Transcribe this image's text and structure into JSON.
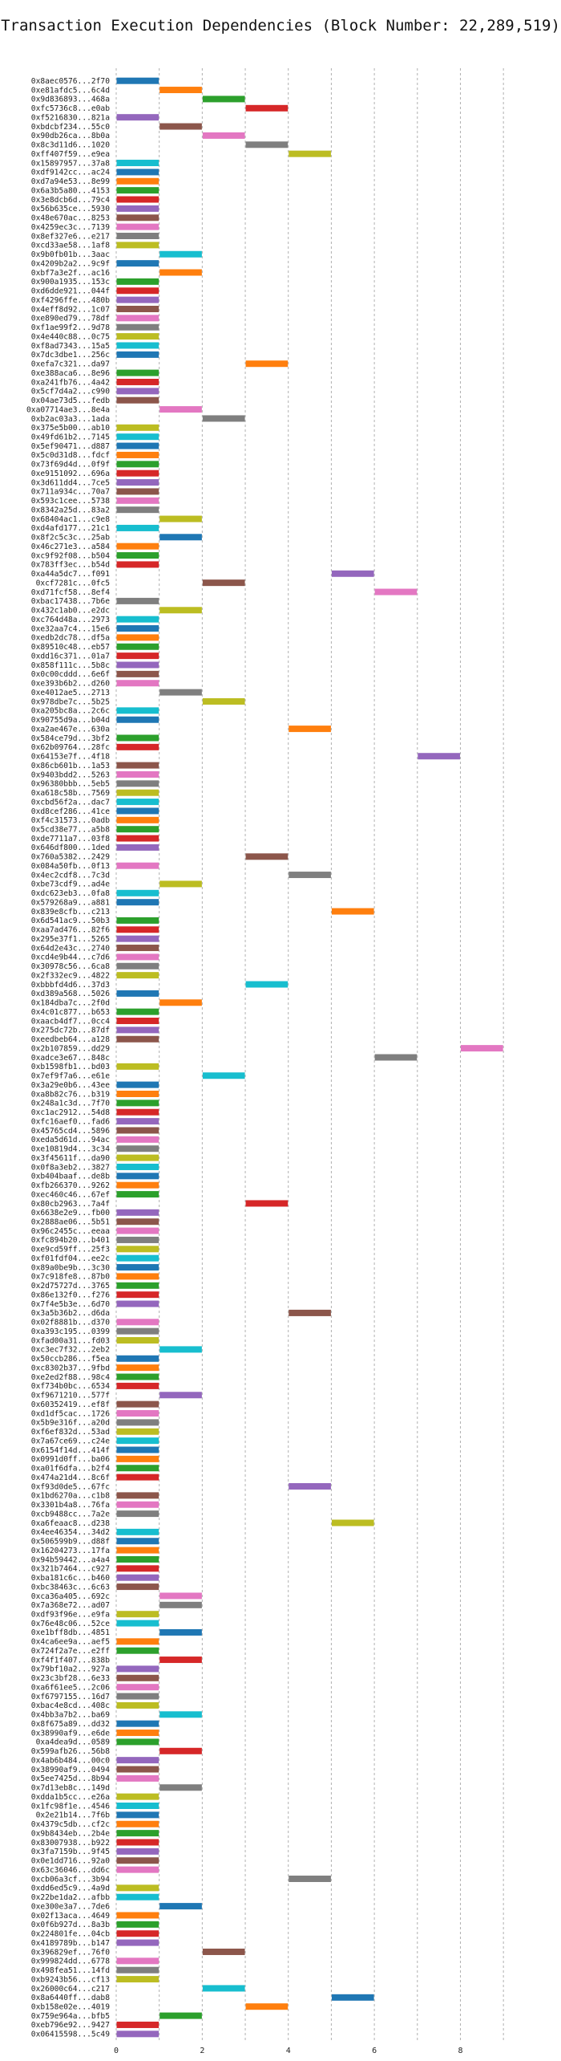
{
  "chart_data": {
    "type": "gantt",
    "title": "Transaction Execution Dependencies (Block Number: 22,289,519)",
    "xlabel": "",
    "ylabel": "",
    "xlim": [
      0,
      9.5
    ],
    "xticks": [
      0,
      2,
      4,
      6,
      8
    ],
    "grid": "vertical dashed at every 1 unit",
    "colors": [
      "#1f77b4",
      "#ff7f0e",
      "#2ca02c",
      "#d62728",
      "#9467bd",
      "#8c564b",
      "#e377c2",
      "#7f7f7f",
      "#bcbd22",
      "#17becf"
    ],
    "transactions": [
      "0x8aec0576...2f70",
      "0xe81afdc5...6c4d",
      "0x9d836893...468a",
      "0xfc5736c8...e0ab",
      "0xf5216830...821a",
      "0xbdcbf234...55c0",
      "0x90db26ca...8b0a",
      "0x8c3d11d6...1020",
      "0xff407f59...e9ea",
      "0x15897957...37a8",
      "0xdf9142cc...ac24",
      "0xd7a94e53...8e99",
      "0x6a3b5a80...4153",
      "0x3e8dcb6d...79c4",
      "0x56b635ce...5930",
      "0x48e670ac...8253",
      "0x4259ec3c...7139",
      "0x8ef327e6...e217",
      "0xcd33ae58...1af8",
      "0x9b0fb01b...3aac",
      "0x4209b2a2...9c9f",
      "0xbf7a3e2f...ac16",
      "0x900a1935...153c",
      "0xd6dde921...044f",
      "0xf4296ffe...480b",
      "0x4eff8d92...1c07",
      "0xe890ed79...78df",
      "0xf1ae99f2...9d78",
      "0x4e440c88...0c75",
      "0xf8ad7343...15a5",
      "0x7dc3dbe1...256c",
      "0xefa7c321...da97",
      "0xe388aca6...8e96",
      "0xa241fb76...4a42",
      "0x5cf7d4a2...c990",
      "0x04ae73d5...fedb",
      "0xa07714ae3...8e4a",
      "0xb2ac03a3...1ada",
      "0x375e5b00...ab10",
      "0x49fd61b2...7145",
      "0x5ef90471...d887",
      "0x5c0d31d8...fdcf",
      "0x73f69d4d...0f9f",
      "0xe9151092...696a",
      "0x3d611dd4...7ce5",
      "0x711a934c...70a7",
      "0x593c1cee...5738",
      "0x8342a25d...83a2",
      "0x68404ac1...c9e8",
      "0xd4afd177...21c1",
      "0x8f2c5c3c...25ab",
      "0x46c271e3...a584",
      "0xc9f92f08...b504",
      "0x783ff3ec...b54d",
      "0xa44a5dc7...f091",
      "0xcf7281c...0fc5",
      "0xd71fcf58...8ef4",
      "0xbac17438...7b6e",
      "0x432c1ab0...e2dc",
      "0xc764d48a...2973",
      "0xe32aa7c4...15e6",
      "0xedb2dc78...df5a",
      "0x89510c48...eb57",
      "0xdd16c371...01a7",
      "0x858f111c...5b8c",
      "0x0c00cddd...6e6f",
      "0xe393b6b2...d260",
      "0xe4012ae5...2713",
      "0x978dbe7c...5b25",
      "0xa205bc8a...2c6c",
      "0x90755d9a...b04d",
      "0xa2ae467e...630a",
      "0x584ce79d...3bf2",
      "0x62b09764...28fc",
      "0x64153e7f...4f18",
      "0x86cb601b...1a53",
      "0x9403bdd2...5263",
      "0x96380bbb...5eb5",
      "0xa618c58b...7569",
      "0xcbd56f2a...dac7",
      "0xd8cef286...41ce",
      "0xf4c31573...0adb",
      "0x5cd38e77...a5b8",
      "0xde7711a7...03f8",
      "0x646df800...1ded",
      "0x760a5382...2429",
      "0x084a50fb...0f13",
      "0x4ec2cdf8...7c3d",
      "0xbe73cdf9...ad4e",
      "0xdc623eb3...0fa8",
      "0x579268a9...a881",
      "0x839e8cfb...c213",
      "0x6d541ac9...50b3",
      "0xaa7ad476...82f6",
      "0x295e37f1...5265",
      "0x64d2e43c...2740",
      "0xcd4e9b44...c7d6",
      "0x30978c56...6ca8",
      "0x2f332ec9...4822",
      "0xbbbfd4d6...37d3",
      "0xd389a568...5026",
      "0x184dba7c...2f0d",
      "0x4c01c877...b653",
      "0xaacb4df7...0cc4",
      "0x275dc72b...87df",
      "0xeedbeb64...a128",
      "0x2b107859...dd29",
      "0xadce3e67...848c",
      "0xb1598fb1...bd03",
      "0x7ef9f7a6...e61e",
      "0x3a29e0b6...43ee",
      "0xa8b82c76...b319",
      "0x248a1c3d...7f70",
      "0xc1ac2912...54d8",
      "0xfc16aef0...fad6",
      "0x45765cd4...5896",
      "0xeda5d61d...94ac",
      "0xe10819d4...3c34",
      "0x3f45611f...da90",
      "0x0f8a3eb2...3827",
      "0xb404baaf...de8b",
      "0xfb266370...9262",
      "0xec460c46...67ef",
      "0x80cb2963...7a4f",
      "0x6638e2e9...fb00",
      "0x2888ae06...5b51",
      "0x96c2455c...eeaa",
      "0xfc894b20...b401",
      "0xe9cd59ff...25f3",
      "0xf01fdf04...ee2c",
      "0x89a0be9b...3c30",
      "0x7c918fe8...87b0",
      "0x2d75727d...3765",
      "0x86e132f0...f276",
      "0x7f4e5b3e...6d70",
      "0x3a5b36b2...d6da",
      "0x02f8881b...d370",
      "0xa393c195...0399",
      "0xfad00a31...fd03",
      "0xc3ec7f32...2eb2",
      "0x50ccb286...f5ea",
      "0xc8302b37...9fbd",
      "0xe2ed2f88...98c4",
      "0xf734b0bc...6534",
      "0xf9671210...577f",
      "0x60352419...ef8f",
      "0xd1df5cac...1726",
      "0x5b9e316f...a20d",
      "0xf6ef832d...53ad",
      "0x7a67ce69...c24e",
      "0x6154f14d...414f",
      "0x0991d0ff...ba06",
      "0xa01f6dfa...b2f4",
      "0x474a21d4...8c6f",
      "0xf93d0de5...67fc",
      "0x1bd6270a...c1b8",
      "0x3301b4a8...76fa",
      "0xcb9488cc...7a2e",
      "0xa6feaac8...d238",
      "0x4ee46354...34d2",
      "0x506599b9...d88f",
      "0x16204273...17fa",
      "0x94b59442...a4a4",
      "0x321b7464...c927",
      "0xba181c6c...b460",
      "0xbc38463c...6c63",
      "0xca36a405...692c",
      "0x7a368e72...ad07",
      "0xdf93f96e...e9fa",
      "0x76e48c06...52ce",
      "0xe1bff8db...4851",
      "0x4ca6ee9a...aef5",
      "0x724f2a7e...e2ff",
      "0xf4f1f407...838b",
      "0x79bf10a2...927a",
      "0x23c3bf28...6e33",
      "0xa6f61ee5...2c06",
      "0xf6797155...16d7",
      "0xbac4e8cd...408c",
      "0x4bb3a7b2...ba69",
      "0x8f675a89...dd32",
      "0x38990af9...e6de",
      "0xa4dea9d...0589",
      "0x599afb26...56b8",
      "0x4ab6b484...00c0",
      "0x38990af9...0494",
      "0x5ee7425d...8b94",
      "0x7d13eb8c...149d",
      "0xdda1b5cc...e26a",
      "0x1fc98f1e...4546",
      "0x2e21b14...7f6b",
      "0x4379c5db...cf2c",
      "0x9b8434eb...2b4e",
      "0x83007938...b922",
      "0x3fa7159b...9f45",
      "0x0e1dd716...92a0",
      "0x63c36046...dd6c",
      "0xcb06a3cf...3b94",
      "0xdd6ed5c9...4a9d",
      "0x22be1da2...afbb",
      "0xe300e3a7...7de6",
      "0x02f13aca...4649",
      "0x0f6b927d...8a3b",
      "0x224801fe...04cb",
      "0x4189789b...b147",
      "0x396829ef...76f0",
      "0x999824dd...6778",
      "0x498fea51...14fd",
      "0xb9243b56...cf13",
      "0x26000c64...c217",
      "0x8a6440ff...dab8",
      "0xb158e02e...4019",
      "0x759e964a...bfb5",
      "0xeb796e92...9427",
      "0x06415598...5c49"
    ],
    "bar_color_sequence": [
      0,
      1,
      2,
      3,
      4,
      5,
      6,
      7,
      8,
      9,
      0,
      1,
      2,
      3,
      4,
      5,
      6,
      7,
      8,
      9,
      0,
      1,
      2,
      3,
      4,
      5,
      6,
      7,
      8,
      9,
      0,
      1,
      2,
      3,
      4,
      5,
      6,
      7,
      8,
      9,
      0,
      1,
      2,
      3,
      4,
      5,
      6,
      7,
      8,
      9,
      0,
      1,
      2,
      3,
      4,
      5,
      6,
      7,
      8,
      9,
      0,
      1,
      2,
      3,
      4,
      5,
      6,
      7,
      8,
      9,
      0,
      1,
      2,
      3,
      4,
      5,
      6,
      7,
      8,
      9,
      0,
      1,
      2,
      3,
      4,
      5,
      6,
      7,
      8,
      9,
      0,
      1,
      2,
      3,
      4,
      5,
      6,
      7,
      8,
      9,
      0,
      1,
      2,
      3,
      4,
      5,
      6,
      7,
      8,
      9,
      0,
      1,
      2,
      3,
      4,
      5,
      6,
      7,
      8,
      9,
      0,
      1,
      2,
      3,
      4,
      5,
      6,
      7,
      8,
      9,
      0,
      1,
      2,
      3,
      4,
      5,
      6,
      7,
      8,
      9,
      0,
      1,
      2,
      3,
      4,
      5,
      6,
      7,
      8,
      9,
      0,
      1,
      2,
      3,
      4,
      5,
      6,
      7,
      8,
      9,
      0,
      1,
      2,
      3,
      4,
      5,
      6,
      7,
      8,
      9,
      0,
      1,
      2,
      3,
      4,
      5,
      6,
      7,
      8,
      9,
      0,
      1,
      2,
      3,
      4,
      5,
      6,
      7,
      8,
      9,
      0,
      1,
      2,
      3,
      4,
      5,
      6,
      7,
      8,
      9,
      0,
      1,
      2,
      3,
      4,
      5,
      6,
      7,
      8,
      9,
      0,
      1,
      2,
      3,
      4
    ],
    "bar_start": [
      0,
      1,
      2,
      3,
      0,
      1,
      2,
      3,
      4,
      0,
      0,
      0,
      0,
      0,
      0,
      0,
      0,
      0,
      0,
      1,
      0,
      1,
      0,
      0,
      0,
      0,
      0,
      0,
      0,
      0,
      0,
      3,
      0,
      0,
      0,
      0,
      1,
      2,
      0,
      0,
      0,
      0,
      0,
      0,
      0,
      0,
      0,
      0,
      1,
      0,
      1,
      0,
      0,
      0,
      5,
      2,
      6,
      0,
      1,
      0,
      0,
      0,
      0,
      0,
      0,
      0,
      0,
      1,
      2,
      0,
      0,
      4,
      0,
      0,
      7,
      0,
      0,
      0,
      0,
      0,
      0,
      0,
      0,
      0,
      0,
      3,
      0,
      4,
      1,
      0,
      0,
      5,
      0,
      0,
      0,
      0,
      0,
      0,
      0,
      3,
      0,
      1,
      0,
      0,
      0,
      0,
      8,
      6,
      0,
      2,
      0,
      0,
      0,
      0,
      0,
      0,
      0,
      0,
      0,
      0,
      0,
      0,
      0,
      3,
      0,
      0,
      0,
      0,
      0,
      0,
      0,
      0,
      0,
      0,
      0,
      4,
      0,
      0,
      0,
      1,
      0,
      0,
      0,
      0,
      1,
      0,
      0,
      0,
      0,
      0,
      0,
      0,
      0,
      0,
      4,
      0,
      0,
      0,
      5,
      0,
      0,
      0,
      0,
      0,
      0,
      0,
      1,
      1,
      0,
      0,
      1,
      0,
      0,
      1,
      0,
      0,
      0,
      0,
      0,
      1,
      0,
      0,
      0,
      1,
      0,
      0,
      0,
      1,
      0,
      0,
      0,
      0,
      0,
      0,
      0,
      0,
      0,
      4,
      0,
      0,
      1,
      0,
      0,
      0,
      0,
      2,
      0,
      0,
      0,
      2,
      5,
      3,
      1,
      0,
      0
    ]
  }
}
